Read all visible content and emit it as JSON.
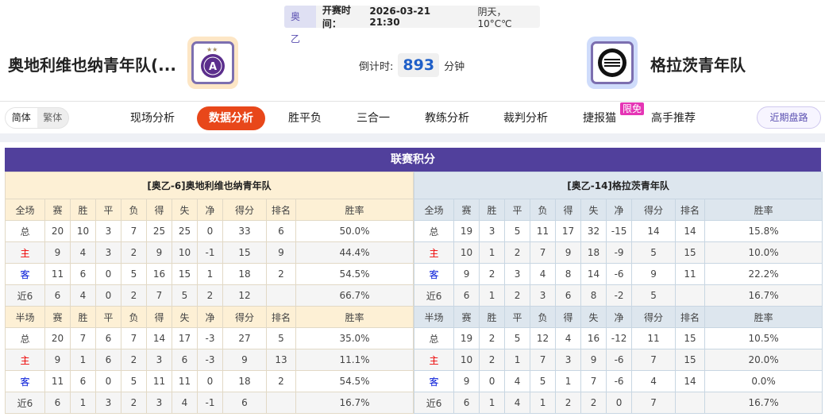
{
  "match": {
    "league": "奥乙",
    "time_label": "开赛时间：",
    "time": "2026-03-21 21:30",
    "weather": "阴天，10°C℃"
  },
  "home_team": {
    "name": "奥地利维也纳青年队(...",
    "logo": "austria-wien-crest"
  },
  "away_team": {
    "name": "格拉茨青年队",
    "logo": "sturm-graz-crest"
  },
  "countdown": {
    "label": "倒计时:",
    "value": "893",
    "unit": "分钟"
  },
  "lang": {
    "simplified": "简体",
    "traditional": "繁体"
  },
  "nav": [
    "现场分析",
    "数据分析",
    "胜平负",
    "三合一",
    "教练分析",
    "裁判分析",
    "捷报猫",
    "高手推荐"
  ],
  "nav_active": "数据分析",
  "badge": "限免",
  "recent_button": "近期盘路",
  "standings": {
    "title": "联赛积分",
    "cols": [
      "赛",
      "胜",
      "平",
      "负",
      "得",
      "失",
      "净",
      "得分",
      "排名",
      "胜率"
    ],
    "home": {
      "title": "[奥乙-6]奥地利维也纳青年队",
      "sections": [
        {
          "label": "全场",
          "rows": [
            [
              "总",
              "20",
              "10",
              "3",
              "7",
              "25",
              "25",
              "0",
              "33",
              "6",
              "50.0%"
            ],
            [
              "主",
              "9",
              "4",
              "3",
              "2",
              "9",
              "10",
              "-1",
              "15",
              "9",
              "44.4%"
            ],
            [
              "客",
              "11",
              "6",
              "0",
              "5",
              "16",
              "15",
              "1",
              "18",
              "2",
              "54.5%"
            ],
            [
              "近6",
              "6",
              "4",
              "0",
              "2",
              "7",
              "5",
              "2",
              "12",
              "",
              "66.7%"
            ]
          ]
        },
        {
          "label": "半场",
          "rows": [
            [
              "总",
              "20",
              "7",
              "6",
              "7",
              "14",
              "17",
              "-3",
              "27",
              "5",
              "35.0%"
            ],
            [
              "主",
              "9",
              "1",
              "6",
              "2",
              "3",
              "6",
              "-3",
              "9",
              "13",
              "11.1%"
            ],
            [
              "客",
              "11",
              "6",
              "0",
              "5",
              "11",
              "11",
              "0",
              "18",
              "2",
              "54.5%"
            ],
            [
              "近6",
              "6",
              "1",
              "3",
              "2",
              "3",
              "4",
              "-1",
              "6",
              "",
              "16.7%"
            ]
          ]
        }
      ]
    },
    "away": {
      "title": "[奥乙-14]格拉茨青年队",
      "sections": [
        {
          "label": "全场",
          "rows": [
            [
              "总",
              "19",
              "3",
              "5",
              "11",
              "17",
              "32",
              "-15",
              "14",
              "14",
              "15.8%"
            ],
            [
              "主",
              "10",
              "1",
              "2",
              "7",
              "9",
              "18",
              "-9",
              "5",
              "15",
              "10.0%"
            ],
            [
              "客",
              "9",
              "2",
              "3",
              "4",
              "8",
              "14",
              "-6",
              "9",
              "11",
              "22.2%"
            ],
            [
              "近6",
              "6",
              "1",
              "2",
              "3",
              "6",
              "8",
              "-2",
              "5",
              "",
              "16.7%"
            ]
          ]
        },
        {
          "label": "半场",
          "rows": [
            [
              "总",
              "19",
              "2",
              "5",
              "12",
              "4",
              "16",
              "-12",
              "11",
              "15",
              "10.5%"
            ],
            [
              "主",
              "10",
              "2",
              "1",
              "7",
              "3",
              "9",
              "-6",
              "7",
              "15",
              "20.0%"
            ],
            [
              "客",
              "9",
              "0",
              "4",
              "5",
              "1",
              "7",
              "-6",
              "4",
              "14",
              "0.0%"
            ],
            [
              "近6",
              "6",
              "1",
              "4",
              "1",
              "2",
              "2",
              "0",
              "7",
              "",
              "16.7%"
            ]
          ]
        }
      ]
    }
  },
  "colors": {
    "accent": "#e8471a",
    "header": "#51409c",
    "home": "#ee0000",
    "away": "#0016d8"
  }
}
